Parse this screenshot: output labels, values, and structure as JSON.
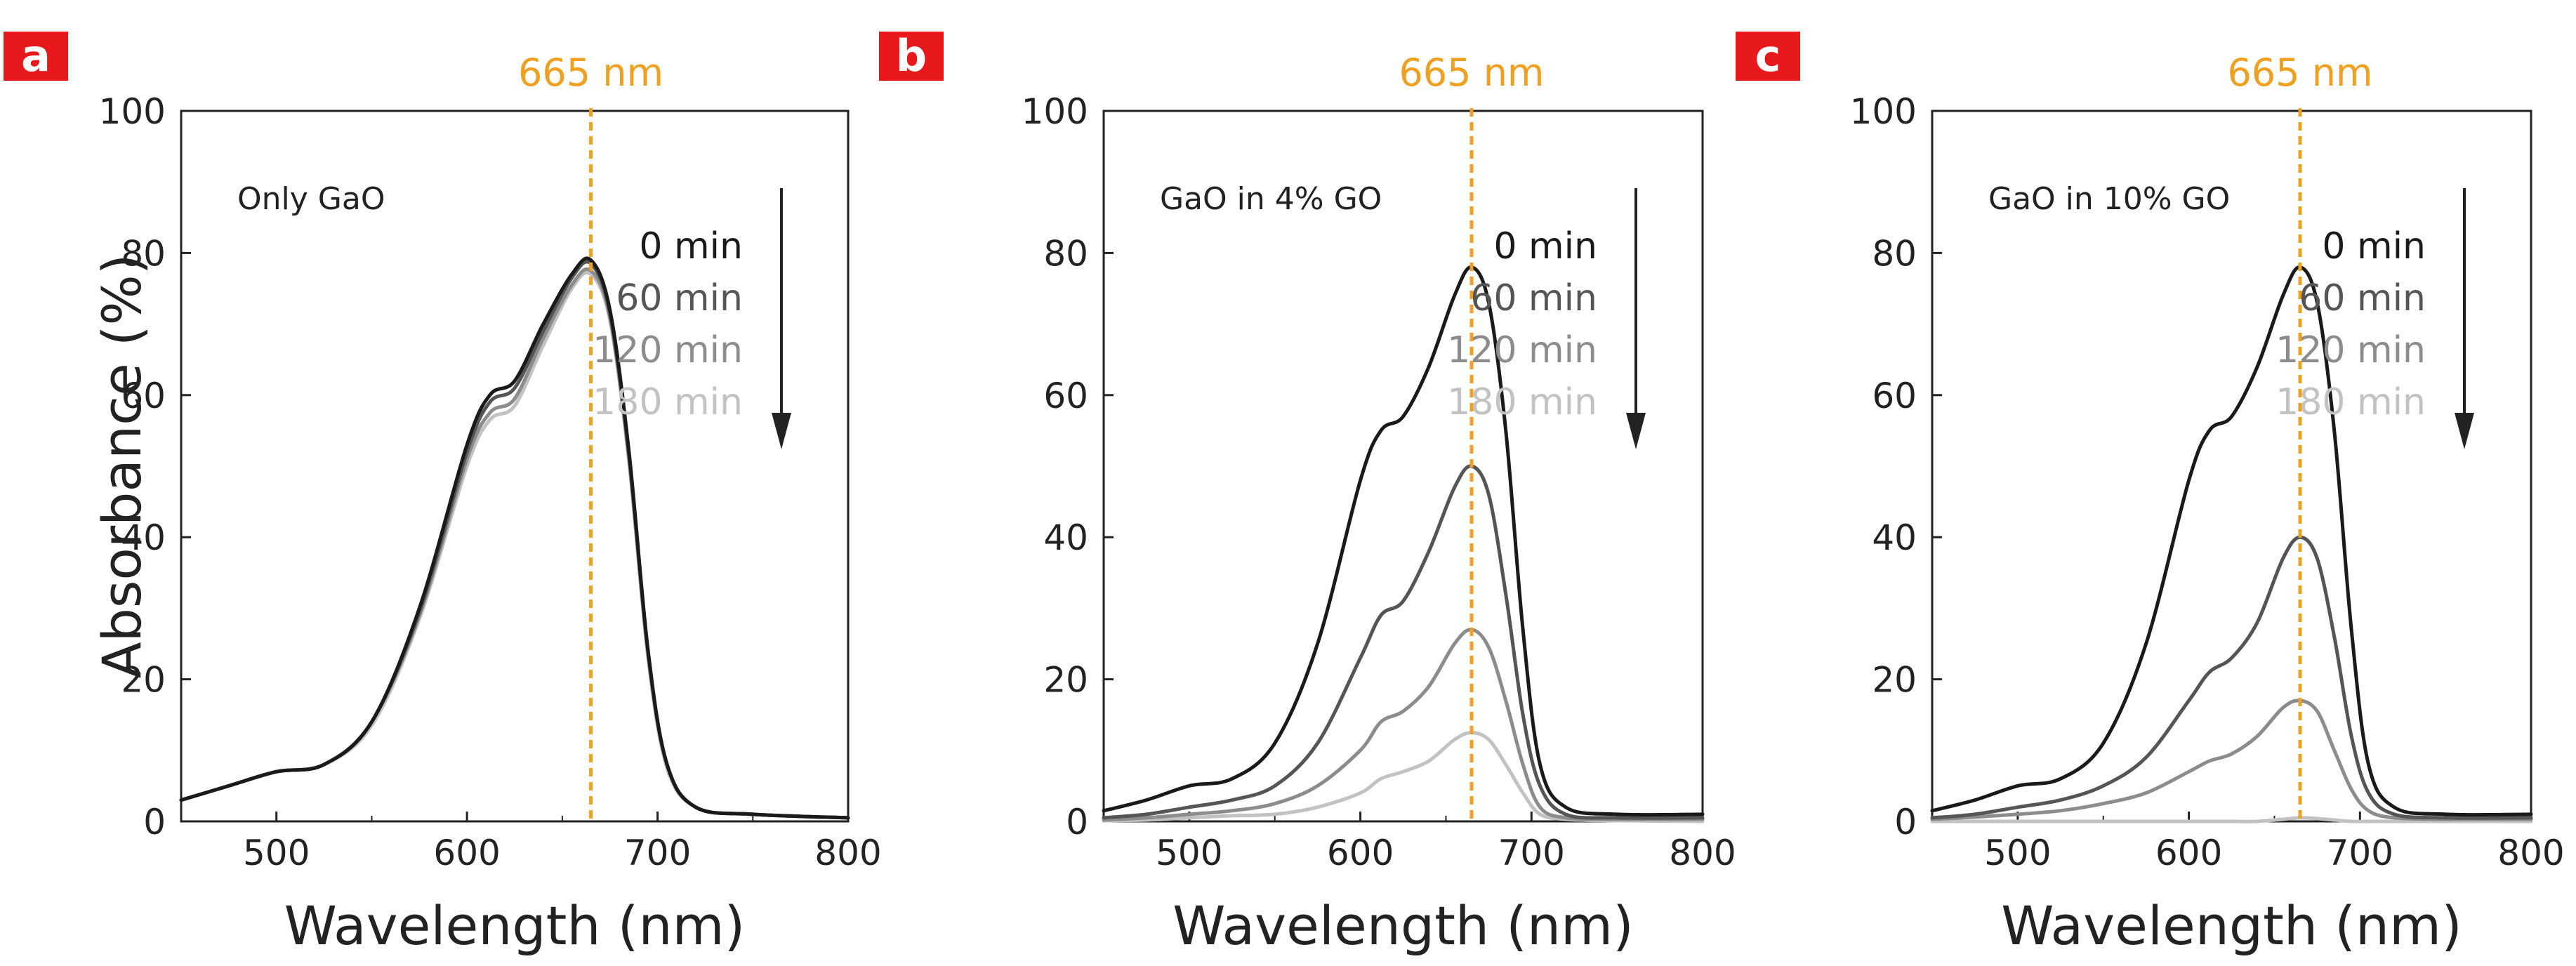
{
  "colors": {
    "series": [
      "#1a1a1a",
      "#555555",
      "#8c8c8c",
      "#c2c2c2"
    ],
    "marker_line": "#f0a020",
    "panel_badge": "#e8191d",
    "panel_badge_text": "#ffffff",
    "axis": "#222222"
  },
  "chart_data": [
    {
      "type": "line",
      "panel_label": "a",
      "annotation": "Only GaO",
      "marker_label": "665 nm",
      "marker_x": 665,
      "xlabel": "Wavelength (nm)",
      "ylabel": "Absorbance (%)",
      "xlim": [
        450,
        800
      ],
      "ylim": [
        0,
        100
      ],
      "xticks": [
        500,
        600,
        700,
        800
      ],
      "yticks": [
        0,
        20,
        40,
        60,
        80,
        100
      ],
      "legend": [
        "0 min",
        "60 min",
        "120 min",
        "180 min"
      ],
      "x": [
        450,
        475,
        500,
        525,
        550,
        575,
        600,
        612,
        625,
        640,
        655,
        665,
        675,
        685,
        695,
        705,
        720,
        750,
        800
      ],
      "series": [
        {
          "name": "0 min",
          "values": [
            3,
            5,
            7,
            8,
            14,
            30,
            53,
            60,
            62,
            70,
            77,
            79,
            72,
            52,
            24,
            8,
            2,
            1,
            0.5
          ]
        },
        {
          "name": "60 min",
          "values": [
            3,
            5,
            7,
            8,
            14,
            29.5,
            52,
            59,
            61,
            69,
            76.5,
            78.5,
            71.5,
            51.5,
            24,
            8,
            2,
            1,
            0.5
          ]
        },
        {
          "name": "120 min",
          "values": [
            3,
            5,
            7,
            8,
            14,
            29,
            51,
            57.5,
            59.5,
            68,
            75.5,
            77.5,
            71,
            51,
            23.5,
            8,
            2,
            1,
            0.5
          ]
        },
        {
          "name": "180 min",
          "values": [
            3,
            5,
            7,
            8,
            13.5,
            28.5,
            50,
            56.5,
            58.5,
            67,
            75,
            77,
            70.5,
            50.5,
            23,
            7.5,
            2,
            1,
            0.5
          ]
        }
      ]
    },
    {
      "type": "line",
      "panel_label": "b",
      "annotation": "GaO in 4% GO",
      "marker_label": "665 nm",
      "marker_x": 665,
      "xlabel": "Wavelength (nm)",
      "ylabel": "",
      "xlim": [
        450,
        800
      ],
      "ylim": [
        0,
        100
      ],
      "xticks": [
        500,
        600,
        700,
        800
      ],
      "yticks": [
        0,
        20,
        40,
        60,
        80,
        100
      ],
      "legend": [
        "0 min",
        "60 min",
        "120 min",
        "180 min"
      ],
      "x": [
        450,
        475,
        500,
        525,
        550,
        575,
        600,
        612,
        625,
        640,
        655,
        665,
        675,
        685,
        695,
        705,
        720,
        750,
        800
      ],
      "series": [
        {
          "name": "0 min",
          "values": [
            1.5,
            3,
            5,
            6,
            11,
            25,
            48,
            55,
            57,
            64,
            74,
            78,
            73,
            55,
            27,
            8,
            2,
            1,
            1
          ]
        },
        {
          "name": "60 min",
          "values": [
            0.5,
            1,
            2,
            3,
            5,
            11,
            23,
            29,
            31,
            38,
            47,
            50,
            46,
            32,
            15,
            5,
            1,
            0.5,
            0.5
          ]
        },
        {
          "name": "120 min",
          "values": [
            0.2,
            0.5,
            1,
            1.5,
            2.5,
            5,
            10,
            14,
            15.5,
            19,
            25,
            27,
            24.5,
            17,
            8,
            2,
            0.5,
            0.3,
            0.3
          ]
        },
        {
          "name": "180 min",
          "values": [
            0.1,
            0.2,
            0.5,
            0.8,
            1,
            2,
            4,
            6,
            7,
            8.5,
            11.5,
            12.5,
            11.5,
            8,
            4,
            1,
            0.3,
            0.1,
            0
          ]
        }
      ]
    },
    {
      "type": "line",
      "panel_label": "c",
      "annotation": "GaO in 10% GO",
      "marker_label": "665 nm",
      "marker_x": 665,
      "xlabel": "Wavelength (nm)",
      "ylabel": "",
      "xlim": [
        450,
        800
      ],
      "ylim": [
        0,
        100
      ],
      "xticks": [
        500,
        600,
        700,
        800
      ],
      "yticks": [
        0,
        20,
        40,
        60,
        80,
        100
      ],
      "legend": [
        "0 min",
        "60 min",
        "120 min",
        "180 min"
      ],
      "x": [
        450,
        475,
        500,
        525,
        550,
        575,
        600,
        612,
        625,
        640,
        655,
        665,
        675,
        685,
        695,
        705,
        720,
        750,
        800
      ],
      "series": [
        {
          "name": "0 min",
          "values": [
            1.5,
            3,
            5,
            6,
            11,
            25,
            48,
            55,
            57,
            64,
            74,
            78,
            73,
            55,
            27,
            8,
            2,
            1,
            1
          ]
        },
        {
          "name": "60 min",
          "values": [
            0.5,
            1,
            2,
            3,
            5,
            9,
            17,
            21,
            23,
            28,
            37,
            40,
            37,
            26,
            12,
            4,
            1,
            0.5,
            0.5
          ]
        },
        {
          "name": "120 min",
          "values": [
            0.3,
            0.6,
            1,
            1.5,
            2.5,
            4,
            7,
            8.5,
            9.5,
            12,
            16,
            17,
            15.5,
            10,
            4.5,
            1.5,
            0.5,
            0.3,
            0.3
          ]
        },
        {
          "name": "180 min",
          "values": [
            0,
            0,
            0,
            0,
            0,
            0,
            0,
            0,
            0,
            0,
            0.3,
            0.5,
            0.4,
            0.2,
            0,
            0,
            0,
            0,
            0
          ]
        }
      ]
    }
  ]
}
